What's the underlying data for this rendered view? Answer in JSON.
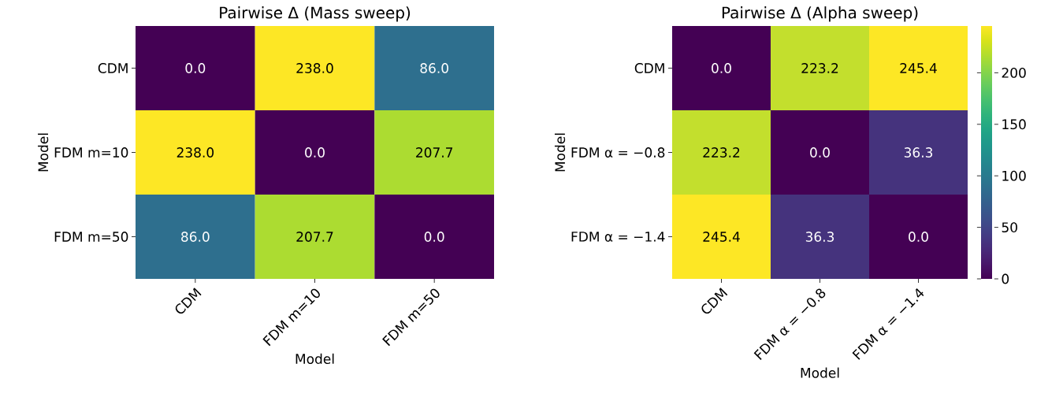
{
  "chart_data": [
    {
      "type": "heatmap",
      "title": "Pairwise Δ (Mass sweep)",
      "xlabel": "Model",
      "ylabel": "Model",
      "categories": [
        "CDM",
        "FDM m=10",
        "FDM m=50"
      ],
      "y_categories": [
        "CDM",
        "FDM m=10",
        "FDM m=50"
      ],
      "cells": [
        [
          0.0,
          238.0,
          86.0
        ],
        [
          238.0,
          0.0,
          207.7
        ],
        [
          86.0,
          207.7,
          0.0
        ]
      ],
      "cell_labels": [
        [
          "0.0",
          "238.0",
          "86.0"
        ],
        [
          "238.0",
          "0.0",
          "207.7"
        ],
        [
          "86.0",
          "207.7",
          "0.0"
        ]
      ]
    },
    {
      "type": "heatmap",
      "title": "Pairwise Δ (Alpha sweep)",
      "xlabel": "Model",
      "ylabel": "Model",
      "categories": [
        "CDM",
        "FDM α = −0.8",
        "FDM α = −1.4"
      ],
      "y_categories": [
        "CDM",
        "FDM α = −0.8",
        "FDM α = −1.4"
      ],
      "cells": [
        [
          0.0,
          223.2,
          245.4
        ],
        [
          223.2,
          0.0,
          36.3
        ],
        [
          245.4,
          36.3,
          0.0
        ]
      ],
      "cell_labels": [
        [
          "0.0",
          "223.2",
          "245.4"
        ],
        [
          "223.2",
          "0.0",
          "36.3"
        ],
        [
          "245.4",
          "36.3",
          "0.0"
        ]
      ],
      "clim": [
        0,
        245.4
      ],
      "cticks": [
        0,
        50,
        100,
        150,
        200
      ]
    }
  ]
}
